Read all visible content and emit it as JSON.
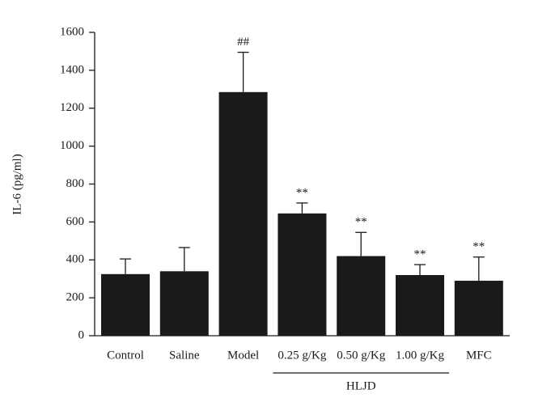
{
  "chart_data": {
    "type": "bar",
    "y_label": "IL-6 (pg/ml)",
    "categories": [
      "Control",
      "Saline",
      "Model",
      "0.25 g/Kg",
      "0.50 g/Kg",
      "1.00 g/Kg",
      "MFC"
    ],
    "values": [
      325,
      340,
      1285,
      645,
      420,
      320,
      290
    ],
    "errors": [
      80,
      125,
      210,
      55,
      125,
      55,
      125
    ],
    "annotations": [
      null,
      null,
      "##",
      "**",
      "**",
      "**",
      "**"
    ],
    "group_label": "HLJD",
    "color": "#1a1a1a",
    "ylim": [
      0,
      1600
    ],
    "yticks": [
      0,
      200,
      400,
      600,
      800,
      1000,
      1200,
      1400,
      1600
    ]
  }
}
